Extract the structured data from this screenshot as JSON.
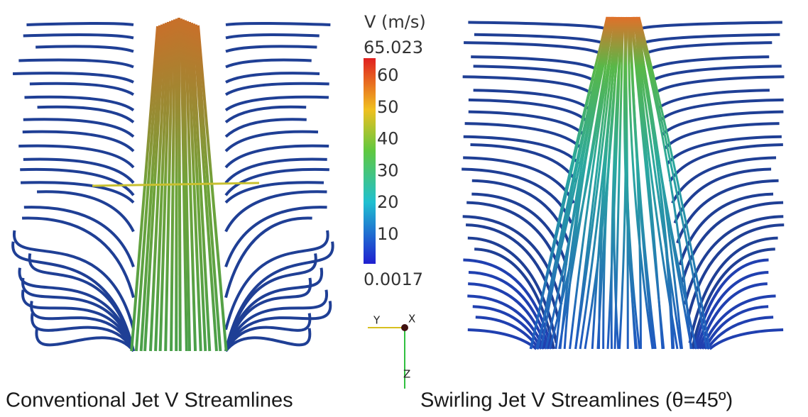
{
  "colorbar": {
    "title": "V (m/s)",
    "max": "65.023",
    "min": "0.0017",
    "ticks": [
      "60",
      "50",
      "40",
      "30",
      "20",
      "10"
    ]
  },
  "axes": {
    "x": "X",
    "y": "Y",
    "z": "Z"
  },
  "captions": [
    "Conventional Jet V Streamlines",
    "Swirling Jet V Streamlines (θ=45º)"
  ]
}
